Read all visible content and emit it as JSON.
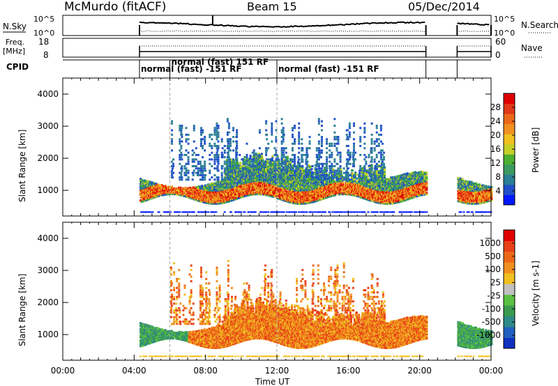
{
  "header": {
    "station": "McMurdo (fitACF)",
    "beam": "Beam 15",
    "date": "05/Dec/2014"
  },
  "summary": {
    "nsky_label": "N.Sky",
    "nsearch_label": "N.Search",
    "freq_label_1": "Freq.",
    "freq_label_2": "[MHz]",
    "nave_label": "Nave",
    "cpid_label": "CPID",
    "nsky_ticks": [
      "10^5",
      "10^0"
    ],
    "nsearch_ticks": [
      "10^5",
      "10^0"
    ],
    "freq_ticks": [
      "18",
      "8"
    ],
    "nave_ticks": [
      "60",
      "0"
    ],
    "cpid_modes": [
      {
        "label": "normal (fast) -151 RF",
        "start_hour": 4.3
      },
      {
        "label": "normal (fast) 151 RF",
        "start_hour": 6.0
      },
      {
        "label": "normal (fast) -151 RF",
        "start_hour": 12.0
      }
    ]
  },
  "xaxis": {
    "label": "Time UT",
    "ticks": [
      "00:00",
      "04:00",
      "08:00",
      "12:00",
      "16:00",
      "20:00",
      "00:00"
    ]
  },
  "chart_data": [
    {
      "type": "heatmap",
      "panel": "power",
      "ylabel": "Slant Range [km]",
      "ylim": [
        200,
        4500
      ],
      "yticks": [
        1000,
        2000,
        3000,
        4000
      ],
      "xlim": [
        0,
        24
      ],
      "colorbar": {
        "label": "Power [dB]",
        "ticks": [
          "28",
          "24",
          "20",
          "16",
          "12",
          "8",
          "4"
        ],
        "colors": [
          "#0018ff",
          "#2050c8",
          "#2a7e96",
          "#3a9a60",
          "#4caf32",
          "#c4d028",
          "#f0c020",
          "#f09020",
          "#ec6818",
          "#e03818",
          "#e00000"
        ]
      },
      "data_intervals": [
        [
          4.3,
          20.35
        ],
        [
          22.1,
          24.0
        ]
      ]
    },
    {
      "type": "heatmap",
      "panel": "velocity",
      "ylabel": "Slant Range [km]",
      "ylim": [
        200,
        4500
      ],
      "yticks": [
        1000,
        2000,
        3000,
        4000
      ],
      "xlim": [
        0,
        24
      ],
      "colorbar": {
        "label": "Velocity [m s-1]",
        "ticks": [
          "1000",
          "500",
          "100",
          "25",
          "-25",
          "-100",
          "-500",
          "-1000"
        ],
        "colors": [
          "#1030c0",
          "#2060c0",
          "#2e8a8a",
          "#3a9a50",
          "#5ac040",
          "#c0c0c0",
          "#f0c020",
          "#f09020",
          "#ec6818",
          "#e84018",
          "#e00000"
        ]
      },
      "data_intervals": [
        [
          4.3,
          20.35
        ],
        [
          22.1,
          24.0
        ]
      ]
    }
  ],
  "colors": {
    "power_strong": "#e00000",
    "velocity_main": "#ec7820"
  }
}
